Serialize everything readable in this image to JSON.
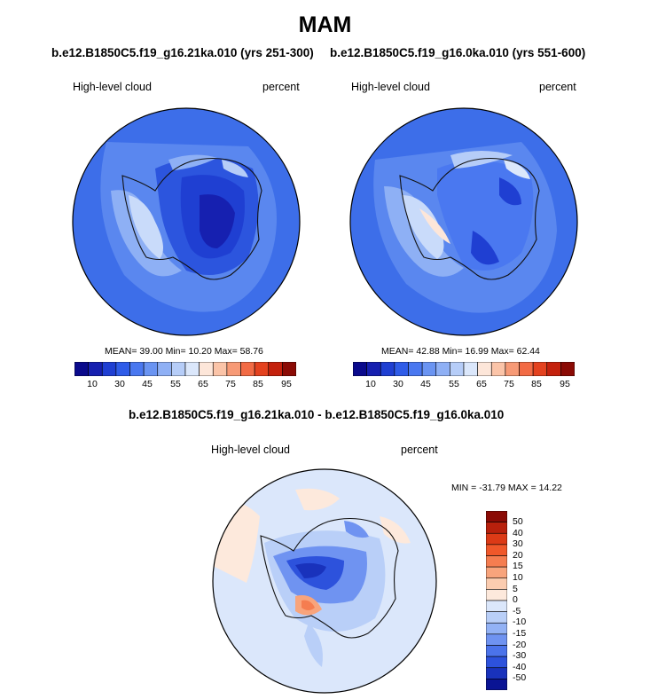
{
  "title": "MAM",
  "panels": [
    {
      "title": "b.e12.B1850C5.f19_g16.21ka.010 (yrs 251-300)",
      "variable": "High-level cloud",
      "units": "percent",
      "stats": "MEAN=  39.00  Min=  10.20  Max=  58.76"
    },
    {
      "title": "b.e12.B1850C5.f19_g16.0ka.010 (yrs 551-600)",
      "variable": "High-level cloud",
      "units": "percent",
      "stats": "MEAN=  42.88  Min=  16.99  Max=  62.44"
    }
  ],
  "colorbar": {
    "colors": [
      "#0a0a8c",
      "#1620b0",
      "#1f3fd2",
      "#2f5ce8",
      "#4a78f0",
      "#6a94f2",
      "#8fb0f5",
      "#b6cdf8",
      "#dbe7fb",
      "#fde6d9",
      "#fbc4a8",
      "#f79a76",
      "#f26b45",
      "#e4421f",
      "#c4210d",
      "#8b0b05"
    ],
    "tick_labels": [
      "10",
      "30",
      "45",
      "55",
      "65",
      "75",
      "85",
      "95"
    ]
  },
  "difference": {
    "title": "b.e12.B1850C5.f19_g16.21ka.010 - b.e12.B1850C5.f19_g16.0ka.010",
    "variable": "High-level cloud",
    "units": "percent",
    "stats": "MIN = -31.79 MAX =  14.22",
    "colorbar": {
      "colors": [
        "#8b0b05",
        "#b8200c",
        "#dc3a16",
        "#f0582a",
        "#f57d50",
        "#f8a47c",
        "#fbccb0",
        "#fde9dc",
        "#dbe7fb",
        "#b9cff8",
        "#93b2f5",
        "#6f93f1",
        "#4b73ea",
        "#2d52dc",
        "#1932bc",
        "#0a1494"
      ],
      "tick_labels": [
        "50",
        "40",
        "30",
        "20",
        "15",
        "10",
        "5",
        "0",
        "-5",
        "-10",
        "-15",
        "-20",
        "-30",
        "-40",
        "-50"
      ]
    }
  }
}
